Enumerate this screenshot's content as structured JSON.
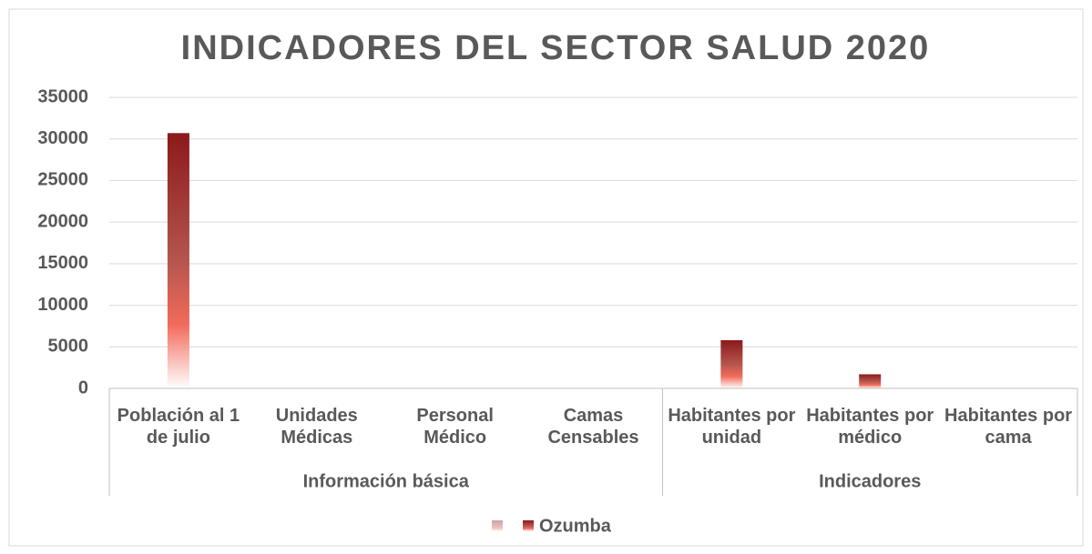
{
  "chart_data": {
    "type": "bar",
    "title": "INDICADORES DEL SECTOR SALUD 2020",
    "groups": [
      {
        "name": "Información básica",
        "categories": [
          "Población al 1 de julio",
          "Unidades Médicas",
          "Personal Médico",
          "Camas Censables"
        ]
      },
      {
        "name": "Indicadores",
        "categories": [
          "Habitantes por unidad",
          "Habitantes por médico",
          "Habitantes por cama"
        ]
      }
    ],
    "series": [
      {
        "name": "Ozumba",
        "color": "#8b1a1a",
        "values": [
          30700,
          5,
          20,
          0,
          5800,
          1700,
          0
        ]
      }
    ],
    "ylim": [
      0,
      35000
    ],
    "yticks": [
      0,
      5000,
      10000,
      15000,
      20000,
      25000,
      30000,
      35000
    ],
    "grid": true,
    "legend": "bottom"
  }
}
